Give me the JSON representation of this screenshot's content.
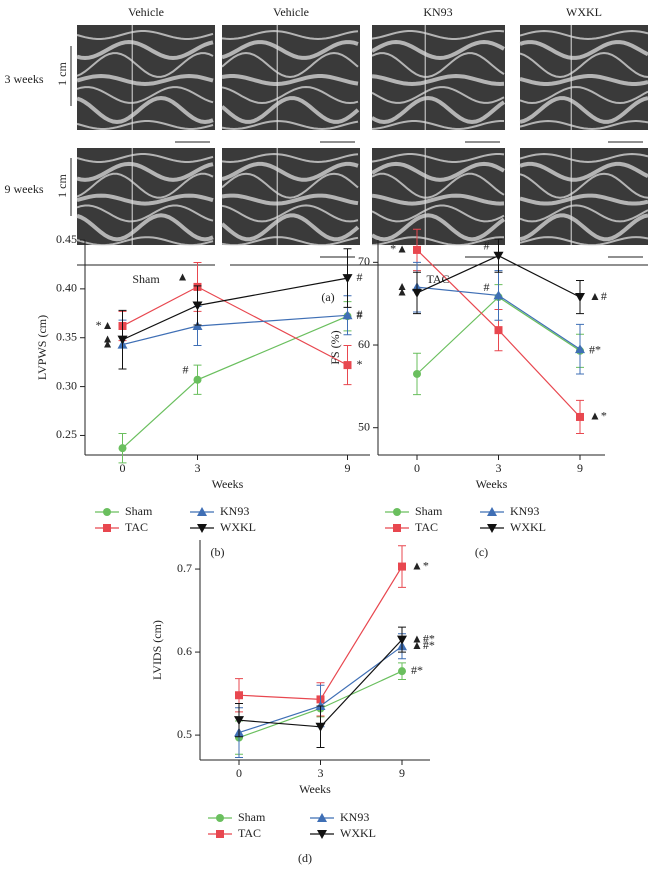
{
  "panel_a": {
    "columns": [
      "Vehicle",
      "Vehicle",
      "KN93",
      "WXKL"
    ],
    "rows": [
      "3 weeks",
      "9 weeks"
    ],
    "scale": [
      "1 cm",
      "1 cm"
    ],
    "groups": [
      "Sham",
      "TAC"
    ],
    "label": "(a)"
  },
  "chart_data": [
    {
      "type": "line",
      "label": "(b)",
      "y_label": "LVPWS (cm)",
      "x_label": "Weeks",
      "x": [
        0,
        3,
        9
      ],
      "xlim": [
        -1.5,
        9.9
      ],
      "xticks": [
        0,
        3,
        9
      ],
      "ylim": [
        0.23,
        0.45
      ],
      "yticks": [
        0.25,
        {
          "value": 0.3,
          "label": "0.30"
        },
        0.35,
        {
          "value": 0.4,
          "label": "0.40"
        },
        0.45
      ],
      "series": [
        {
          "name": "Sham",
          "color": "#6abf5e",
          "marker": "circle",
          "values": [
            0.237,
            0.307,
            0.372
          ],
          "errors": [
            0.015,
            0.015,
            0.015
          ],
          "point_labels": [
            null,
            "#",
            "#"
          ]
        },
        {
          "name": "TAC",
          "color": "#e8474f",
          "marker": "square",
          "values": [
            0.362,
            0.402,
            0.322
          ],
          "errors": [
            0.015,
            0.025,
            0.02
          ],
          "point_labels": [
            "*▲",
            "▲",
            "*"
          ]
        },
        {
          "name": "KN93",
          "color": "#3f6fb5",
          "marker": "triangle",
          "values": [
            0.343,
            0.362,
            0.373
          ],
          "errors": [
            0.025,
            0.02,
            0.02
          ],
          "point_labels": [
            "▲",
            null,
            "#"
          ]
        },
        {
          "name": "WXKL",
          "color": "#111111",
          "marker": "triangle-down",
          "values": [
            0.348,
            0.383,
            0.411
          ],
          "errors": [
            0.03,
            0.02,
            0.03
          ],
          "point_labels": [
            "▲",
            null,
            "#"
          ]
        }
      ]
    },
    {
      "type": "line",
      "label": "(c)",
      "y_label": "FS (%)",
      "x_label": "Weeks",
      "categories": [
        "0",
        "3",
        "9"
      ],
      "ylim": [
        46.7,
        72.7
      ],
      "yticks": [
        50,
        60,
        70
      ],
      "series": [
        {
          "name": "Sham",
          "color": "#6abf5e",
          "marker": "circle",
          "values": [
            56.5,
            65.8,
            59.3
          ],
          "errors": [
            2.5,
            1.5,
            2
          ],
          "point_labels": [
            null,
            "#",
            "#*"
          ]
        },
        {
          "name": "TAC",
          "color": "#e8474f",
          "marker": "square",
          "values": [
            71.5,
            61.8,
            51.3
          ],
          "errors": [
            2.5,
            2.5,
            2
          ],
          "point_labels": [
            "*▲",
            null,
            "▲*"
          ]
        },
        {
          "name": "KN93",
          "color": "#3f6fb5",
          "marker": "triangle",
          "values": [
            67,
            66,
            59.5
          ],
          "errors": [
            3,
            3,
            3
          ],
          "point_labels": [
            "▲",
            null,
            null
          ]
        },
        {
          "name": "WXKL",
          "color": "#111111",
          "marker": "triangle-down",
          "values": [
            66.3,
            70.8,
            65.8
          ],
          "errors": [
            2.5,
            2,
            2
          ],
          "point_labels": [
            "▲",
            "#",
            "▲#"
          ]
        }
      ]
    },
    {
      "type": "line",
      "label": "(d)",
      "y_label": "LVIDS (cm)",
      "x_label": "Weeks",
      "categories": [
        "0",
        "3",
        "9"
      ],
      "ylim": [
        0.47,
        0.735
      ],
      "yticks": [
        0.5,
        0.6,
        0.7
      ],
      "series": [
        {
          "name": "Sham",
          "color": "#6abf5e",
          "marker": "circle",
          "values": [
            0.497,
            0.532,
            0.577
          ],
          "errors": [
            0.02,
            0.01,
            0.01
          ],
          "point_labels": [
            null,
            null,
            "#*"
          ]
        },
        {
          "name": "TAC",
          "color": "#e8474f",
          "marker": "square",
          "values": [
            0.548,
            0.543,
            0.703
          ],
          "errors": [
            0.02,
            0.02,
            0.025
          ],
          "point_labels": [
            null,
            null,
            "▲*"
          ]
        },
        {
          "name": "KN93",
          "color": "#3f6fb5",
          "marker": "triangle",
          "values": [
            0.503,
            0.535,
            0.607
          ],
          "errors": [
            0.03,
            0.025,
            0.015
          ],
          "point_labels": [
            null,
            null,
            "▲#*"
          ]
        },
        {
          "name": "WXKL",
          "color": "#111111",
          "marker": "triangle-down",
          "values": [
            0.518,
            0.51,
            0.615
          ],
          "errors": [
            0.02,
            0.025,
            0.015
          ],
          "point_labels": [
            null,
            null,
            "▲#*"
          ]
        }
      ]
    }
  ]
}
